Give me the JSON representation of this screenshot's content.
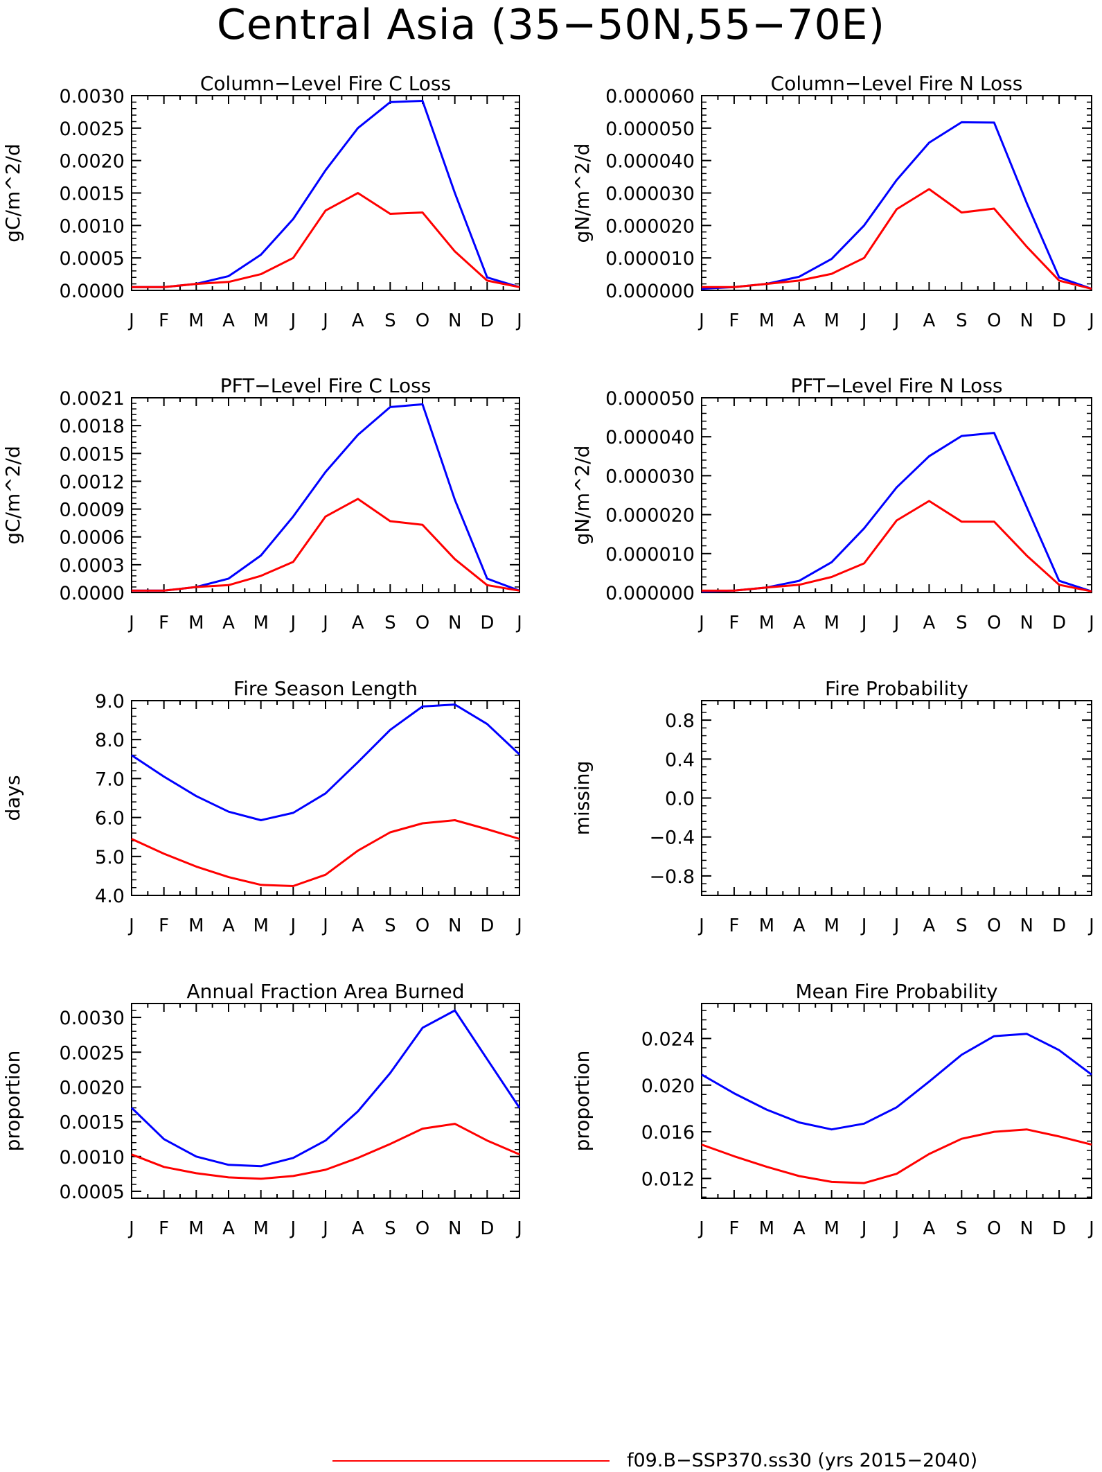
{
  "title": "Central Asia (35−50N,55−70E)",
  "legend": {
    "entries": [
      {
        "label": "f09.B−SSP370.ss30 (yrs 2015−2040)",
        "color": "#ff0000"
      }
    ]
  },
  "colors": {
    "series_a": "#0000ff",
    "series_b": "#ff0000",
    "axis": "#000000"
  },
  "chart_data": [
    {
      "type": "line",
      "title": "Column−Level Fire C Loss",
      "ylabel": "gC/m^2/d",
      "xlabel": "",
      "categories": [
        "J",
        "F",
        "M",
        "A",
        "M",
        "J",
        "J",
        "A",
        "S",
        "O",
        "N",
        "D",
        "J"
      ],
      "ylim": [
        0,
        0.003
      ],
      "yticks": [
        "0.0000",
        "0.0005",
        "0.0010",
        "0.0015",
        "0.0020",
        "0.0025",
        "0.0030"
      ],
      "grid": false,
      "series": [
        {
          "values": [
            5e-05,
            5e-05,
            0.0001,
            0.00022,
            0.00055,
            0.0011,
            0.00185,
            0.0025,
            0.0029,
            0.00292,
            0.0015,
            0.0002,
            5e-05
          ]
        },
        {
          "values": [
            5e-05,
            5e-05,
            0.0001,
            0.00013,
            0.00025,
            0.0005,
            0.00123,
            0.0015,
            0.00118,
            0.0012,
            0.0006,
            0.00015,
            5e-05
          ]
        }
      ]
    },
    {
      "type": "line",
      "title": "Column−Level Fire N Loss",
      "ylabel": "gN/m^2/d",
      "xlabel": "",
      "categories": [
        "J",
        "F",
        "M",
        "A",
        "M",
        "J",
        "J",
        "A",
        "S",
        "O",
        "N",
        "D",
        "J"
      ],
      "ylim": [
        0,
        6e-05
      ],
      "yticks": [
        "0.000000",
        "0.000010",
        "0.000020",
        "0.000030",
        "0.000040",
        "0.000050",
        "0.000060"
      ],
      "grid": false,
      "series": [
        {
          "values": [
            5e-07,
            1e-06,
            2e-06,
            4.2e-06,
            9.7e-06,
            2e-05,
            3.4e-05,
            4.55e-05,
            5.18e-05,
            5.17e-05,
            2.7e-05,
            4e-06,
            5e-07
          ]
        },
        {
          "values": [
            1e-06,
            1e-06,
            2e-06,
            3e-06,
            5.1e-06,
            1e-05,
            2.5e-05,
            3.12e-05,
            2.4e-05,
            2.52e-05,
            1.35e-05,
            3e-06,
            5e-07
          ]
        }
      ]
    },
    {
      "type": "line",
      "title": "PFT−Level Fire C Loss",
      "ylabel": "gC/m^2/d",
      "xlabel": "",
      "categories": [
        "J",
        "F",
        "M",
        "A",
        "M",
        "J",
        "J",
        "A",
        "S",
        "O",
        "N",
        "D",
        "J"
      ],
      "ylim": [
        0,
        0.0021
      ],
      "yticks": [
        "0.0000",
        "0.0003",
        "0.0006",
        "0.0009",
        "0.0012",
        "0.0015",
        "0.0018",
        "0.0021"
      ],
      "grid": false,
      "series": [
        {
          "values": [
            2e-05,
            2e-05,
            6e-05,
            0.00015,
            0.0004,
            0.00082,
            0.0013,
            0.0017,
            0.002,
            0.00203,
            0.001,
            0.00015,
            2e-05
          ]
        },
        {
          "values": [
            2e-05,
            2e-05,
            6e-05,
            8e-05,
            0.00018,
            0.00033,
            0.00082,
            0.00101,
            0.00077,
            0.00073,
            0.00036,
            8e-05,
            2e-05
          ]
        }
      ]
    },
    {
      "type": "line",
      "title": "PFT−Level Fire N Loss",
      "ylabel": "gN/m^2/d",
      "xlabel": "",
      "categories": [
        "J",
        "F",
        "M",
        "A",
        "M",
        "J",
        "J",
        "A",
        "S",
        "O",
        "N",
        "D",
        "J"
      ],
      "ylim": [
        0,
        5e-05
      ],
      "yticks": [
        "0.000000",
        "0.000010",
        "0.000020",
        "0.000030",
        "0.000040",
        "0.000050"
      ],
      "grid": false,
      "series": [
        {
          "values": [
            3e-07,
            5e-07,
            1.3e-06,
            3e-06,
            7.8e-06,
            1.65e-05,
            2.7e-05,
            3.5e-05,
            4.02e-05,
            4.1e-05,
            2.2e-05,
            3e-06,
            3e-07
          ]
        },
        {
          "values": [
            5e-07,
            5e-07,
            1.3e-06,
            2e-06,
            4e-06,
            7.5e-06,
            1.85e-05,
            2.35e-05,
            1.82e-05,
            1.82e-05,
            9.5e-06,
            2e-06,
            3e-07
          ]
        }
      ]
    },
    {
      "type": "line",
      "title": "Fire Season Length",
      "ylabel": "days",
      "xlabel": "",
      "categories": [
        "J",
        "F",
        "M",
        "A",
        "M",
        "J",
        "J",
        "A",
        "S",
        "O",
        "N",
        "D",
        "J"
      ],
      "ylim": [
        4.0,
        9.0
      ],
      "yticks": [
        "4.0",
        "5.0",
        "6.0",
        "7.0",
        "8.0",
        "9.0"
      ],
      "grid": false,
      "series": [
        {
          "values": [
            7.6,
            7.05,
            6.55,
            6.15,
            5.93,
            6.12,
            6.62,
            7.42,
            8.25,
            8.85,
            8.9,
            8.4,
            7.62
          ]
        },
        {
          "values": [
            5.45,
            5.07,
            4.74,
            4.47,
            4.27,
            4.24,
            4.53,
            5.15,
            5.62,
            5.85,
            5.93,
            5.7,
            5.45
          ]
        }
      ]
    },
    {
      "type": "line",
      "title": "Fire Probability",
      "ylabel": "missing",
      "xlabel": "",
      "categories": [
        "J",
        "F",
        "M",
        "A",
        "M",
        "J",
        "J",
        "A",
        "S",
        "O",
        "N",
        "D",
        "J"
      ],
      "ylim": [
        -1.0,
        1.0
      ],
      "yticks": [
        "−0.8",
        "−0.4",
        "0.0",
        "0.4",
        "0.8"
      ],
      "grid": false,
      "series": []
    },
    {
      "type": "line",
      "title": "Annual Fraction Area Burned",
      "ylabel": "proportion",
      "xlabel": "",
      "categories": [
        "J",
        "F",
        "M",
        "A",
        "M",
        "J",
        "J",
        "A",
        "S",
        "O",
        "N",
        "D",
        "J"
      ],
      "ylim": [
        0.0004,
        0.0032
      ],
      "yticks": [
        "0.0005",
        "0.0010",
        "0.0015",
        "0.0020",
        "0.0025",
        "0.0030"
      ],
      "grid": false,
      "series": [
        {
          "values": [
            0.0017,
            0.00125,
            0.001,
            0.00088,
            0.00086,
            0.00098,
            0.00123,
            0.00165,
            0.0022,
            0.00285,
            0.0031,
            0.0024,
            0.0017
          ]
        },
        {
          "values": [
            0.00103,
            0.00085,
            0.00076,
            0.0007,
            0.00068,
            0.00072,
            0.00081,
            0.00098,
            0.00118,
            0.0014,
            0.00147,
            0.00123,
            0.00103
          ]
        }
      ]
    },
    {
      "type": "line",
      "title": "Mean Fire Probability",
      "ylabel": "proportion",
      "xlabel": "",
      "categories": [
        "J",
        "F",
        "M",
        "A",
        "M",
        "J",
        "J",
        "A",
        "S",
        "O",
        "N",
        "D",
        "J"
      ],
      "ylim": [
        0.0103,
        0.027
      ],
      "yticks": [
        "0.012",
        "0.016",
        "0.020",
        "0.024"
      ],
      "grid": false,
      "series": [
        {
          "values": [
            0.0209,
            0.0193,
            0.0179,
            0.0168,
            0.0162,
            0.0167,
            0.0181,
            0.0203,
            0.0226,
            0.0242,
            0.0244,
            0.023,
            0.0209
          ]
        },
        {
          "values": [
            0.0149,
            0.0139,
            0.013,
            0.0122,
            0.0117,
            0.0116,
            0.0124,
            0.0141,
            0.0154,
            0.016,
            0.0162,
            0.0156,
            0.0149
          ]
        }
      ]
    }
  ]
}
